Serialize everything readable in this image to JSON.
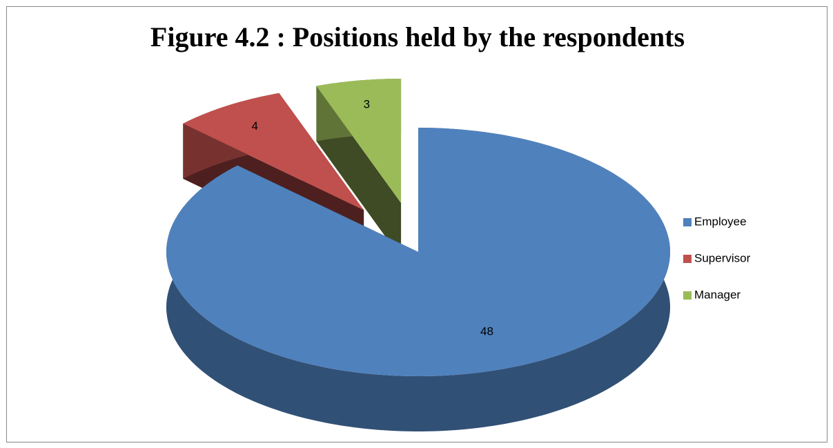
{
  "chart_data": {
    "type": "pie3d",
    "title": "Figure 4.2 : Positions held by the respondents",
    "categories": [
      "Employee",
      "Supervisor",
      "Manager"
    ],
    "values": [
      48,
      4,
      3
    ],
    "colors": [
      "#4f81bd",
      "#c0504d",
      "#9bbb59"
    ],
    "legend": "right"
  }
}
